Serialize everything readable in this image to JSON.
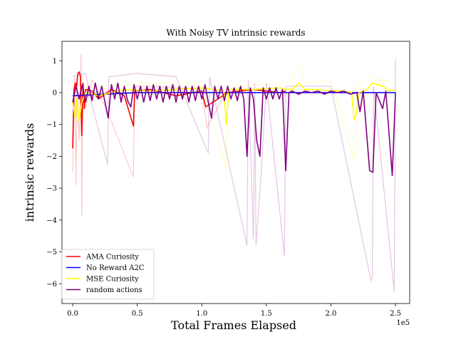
{
  "chart_data": {
    "type": "line",
    "title": "With Noisy TV  intrinsic rewards",
    "xlabel": "Total Frames Elapsed",
    "ylabel": "intrinsic rewards",
    "x_offset_label": "1e5",
    "xlim": [
      -8300,
      261000
    ],
    "ylim": [
      -6.62,
      1.61
    ],
    "xticks": [
      {
        "value": 0,
        "label": "0.0"
      },
      {
        "value": 50000,
        "label": "0.5"
      },
      {
        "value": 100000,
        "label": "1.0"
      },
      {
        "value": 150000,
        "label": "1.5"
      },
      {
        "value": 200000,
        "label": "2.0"
      },
      {
        "value": 250000,
        "label": "2.5"
      }
    ],
    "yticks": [
      {
        "value": -6,
        "label": "−6"
      },
      {
        "value": -5,
        "label": "−5"
      },
      {
        "value": -4,
        "label": "−4"
      },
      {
        "value": -3,
        "label": "−3"
      },
      {
        "value": -2,
        "label": "−2"
      },
      {
        "value": -1,
        "label": "−1"
      },
      0,
      1
    ],
    "grid": false,
    "legend": "lower left",
    "series": [
      {
        "name": "AMA Curiosity",
        "color": "#ff0000",
        "x": [
          0,
          1000,
          2000,
          3000,
          4000,
          5000,
          6000,
          7000,
          8000,
          9000,
          10000,
          15000,
          20000,
          30000,
          40000,
          47000,
          48000,
          60000,
          80000,
          100000,
          103000,
          120000,
          140000,
          160000,
          165000
        ],
        "values": [
          -1.75,
          0.1,
          0.3,
          0.2,
          0.6,
          0.65,
          0.5,
          -1.35,
          0.3,
          -0.5,
          0.1,
          0.05,
          -0.2,
          0.1,
          -0.1,
          -1.05,
          0.05,
          0.1,
          -0.1,
          0.05,
          -0.45,
          0.0,
          0.1,
          0.0,
          0.05
        ],
        "raw_x": [
          0,
          1500,
          2500,
          3500,
          5000,
          6500,
          7000,
          8000,
          10000,
          15000,
          27000,
          47000,
          48000,
          60000,
          100000,
          104000,
          120000
        ],
        "raw_values": [
          -2.5,
          0.5,
          -2.9,
          0.4,
          -1.5,
          1.2,
          -3.9,
          0.3,
          -0.5,
          0.4,
          -0.6,
          -2.65,
          0.2,
          0.2,
          0.1,
          -1.1,
          0.1
        ]
      },
      {
        "name": "No Reward A2C",
        "color": "#0000ff",
        "x": [
          0,
          50000,
          100000,
          150000,
          200000,
          250000
        ],
        "values": [
          -0.1,
          0.0,
          0.0,
          0.0,
          0.0,
          0.0
        ],
        "raw_x": [
          0,
          250000
        ],
        "raw_values": [
          0.0,
          0.0
        ]
      },
      {
        "name": "MSE Curiosity",
        "color": "#ffff00",
        "x": [
          0,
          2000,
          3000,
          5000,
          7000,
          10000,
          20000,
          40000,
          60000,
          80000,
          100000,
          117000,
          119000,
          121000,
          140000,
          160000,
          165000,
          170000,
          175000,
          180000,
          190000,
          200000,
          210000,
          216000,
          218000,
          220000,
          222000,
          228000,
          232000,
          240000,
          245000,
          250000
        ],
        "values": [
          -0.3,
          -0.8,
          -0.2,
          -0.9,
          -0.3,
          0.0,
          -0.1,
          0.1,
          0.05,
          0.1,
          0.15,
          0.05,
          -1.0,
          0.1,
          0.1,
          0.15,
          0.1,
          0.1,
          0.3,
          0.1,
          0.1,
          0.05,
          0.05,
          0.0,
          -0.85,
          -0.6,
          0.0,
          0.1,
          0.3,
          0.2,
          0.05,
          0.1
        ],
        "raw_x": [
          0,
          20000,
          60000,
          100000,
          119000,
          120000,
          165000,
          170000,
          175000,
          180000,
          200000,
          218000,
          220000,
          232000,
          240000,
          250000
        ],
        "raw_values": [
          0.1,
          0.2,
          0.3,
          0.3,
          -2.4,
          0.2,
          0.3,
          0.4,
          0.9,
          0.3,
          0.4,
          -2.1,
          0.3,
          0.5,
          0.4,
          0.3
        ]
      },
      {
        "name": "random actions",
        "color": "#800080",
        "x": [
          0,
          2500,
          5000,
          7500,
          10000,
          12500,
          15000,
          17500,
          20000,
          22500,
          25000,
          27500,
          30000,
          32500,
          35000,
          37500,
          40000,
          42500,
          45000,
          47500,
          50000,
          52500,
          55000,
          57500,
          60000,
          62500,
          65000,
          67500,
          70000,
          72500,
          75000,
          77500,
          80000,
          82500,
          85000,
          87500,
          90000,
          92500,
          95000,
          97500,
          100000,
          102500,
          105000,
          107500,
          110000,
          112500,
          115000,
          117500,
          120000,
          122500,
          125000,
          127500,
          130000,
          132500,
          135000,
          137500,
          140000,
          142500,
          145000,
          147500,
          150000,
          152500,
          155000,
          157500,
          160000,
          162500,
          165000,
          167500,
          170000,
          175000,
          180000,
          185000,
          190000,
          195000,
          200000,
          205000,
          210000,
          215000,
          220000,
          222500,
          225000,
          230000,
          232500,
          235000,
          240000,
          242500,
          247500,
          250000
        ],
        "values": [
          -0.3,
          0.2,
          -0.2,
          0.25,
          -0.3,
          0.2,
          -0.25,
          0.3,
          -0.2,
          0.2,
          -0.3,
          -0.8,
          0.25,
          -0.2,
          0.3,
          -0.3,
          0.2,
          -0.25,
          -0.45,
          0.25,
          -0.2,
          0.2,
          -0.3,
          0.2,
          -0.25,
          0.25,
          -0.2,
          0.2,
          -0.3,
          0.2,
          -0.2,
          0.25,
          -0.3,
          0.2,
          -0.2,
          0.2,
          -0.3,
          0.2,
          -0.25,
          0.2,
          -0.2,
          0.25,
          -0.3,
          -0.8,
          0.2,
          -0.2,
          0.2,
          -0.25,
          0.2,
          -0.2,
          0.15,
          -0.25,
          0.2,
          -0.2,
          -2.0,
          0.15,
          -0.2,
          -1.5,
          -2.0,
          0.15,
          -0.2,
          0.15,
          -0.2,
          0.15,
          -0.2,
          0.1,
          -2.45,
          0.0,
          0.05,
          -0.05,
          0.05,
          0.0,
          0.05,
          -0.05,
          0.05,
          0.0,
          0.05,
          -0.05,
          0.0,
          -0.6,
          0.05,
          -2.45,
          -2.5,
          0.0,
          -0.5,
          0.05,
          -2.6,
          0.0
        ],
        "raw_x": [
          0,
          10000,
          15000,
          27000,
          28000,
          50000,
          80000,
          105000,
          106000,
          135000,
          136000,
          140000,
          141000,
          142000,
          146000,
          150000,
          164000,
          165000,
          200000,
          231000,
          232000,
          233000,
          249000,
          250000
        ],
        "raw_values": [
          0.5,
          0.6,
          -0.4,
          -2.25,
          0.5,
          0.6,
          0.5,
          -1.9,
          0.5,
          -4.8,
          0.4,
          -4.6,
          0.3,
          -4.8,
          -2.5,
          0.3,
          -5.15,
          0.2,
          0.2,
          -5.9,
          -5.8,
          0.2,
          -6.25,
          1.05
        ]
      }
    ]
  }
}
